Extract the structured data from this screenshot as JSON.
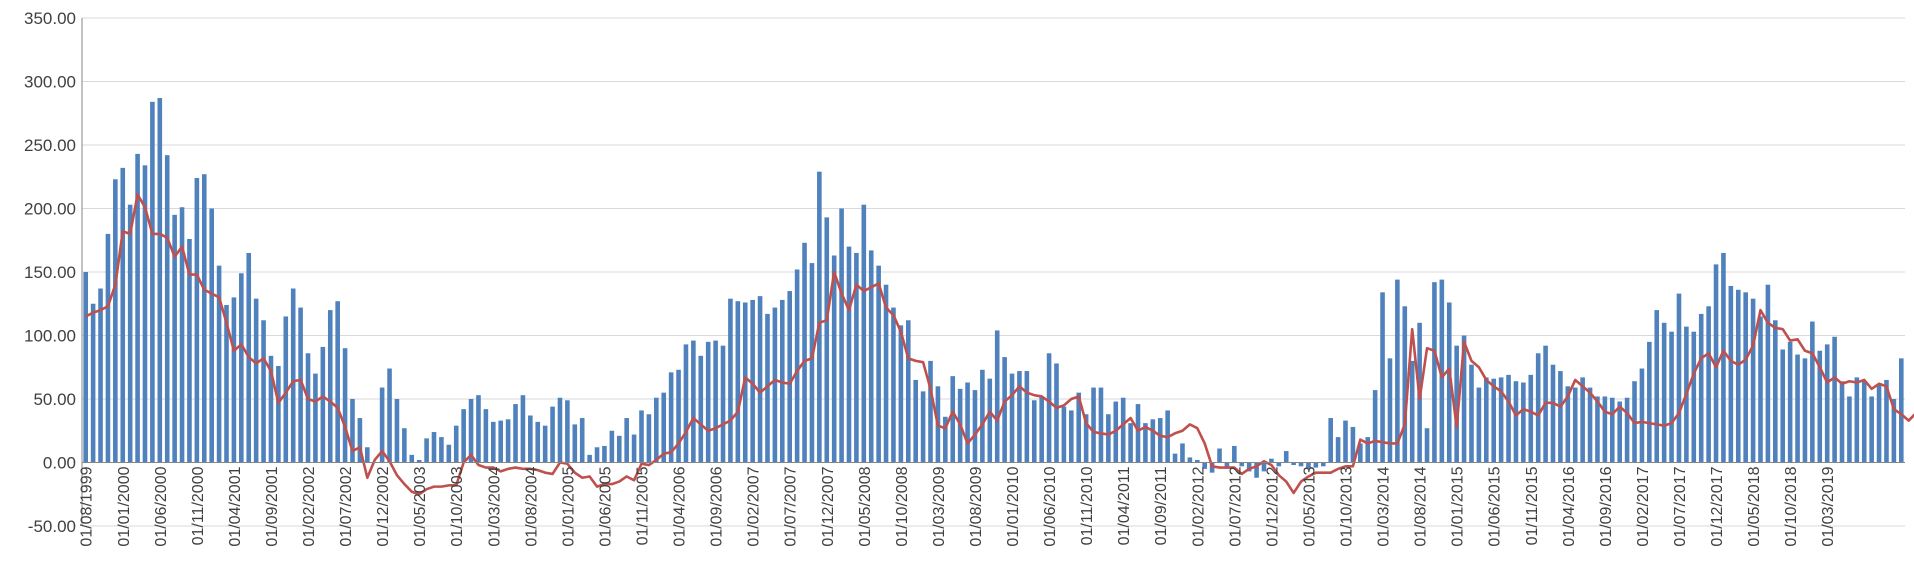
{
  "chart_data": {
    "type": "bar",
    "title": "",
    "xlabel": "",
    "ylabel": "",
    "ylim": [
      -50,
      350
    ],
    "yticks": [
      "-50.00",
      "0.00",
      "50.00",
      "100.00",
      "150.00",
      "200.00",
      "250.00",
      "300.00",
      "350.00"
    ],
    "ytick_values": [
      -50,
      0,
      50,
      100,
      150,
      200,
      250,
      300,
      350
    ],
    "grid": "horizontal",
    "legend": "none",
    "x_start": "1999-08",
    "xtick_labels": [
      "01/08/1999",
      "01/01/2000",
      "01/06/2000",
      "01/11/2000",
      "01/04/2001",
      "01/09/2001",
      "01/02/2002",
      "01/07/2002",
      "01/12/2002",
      "01/05/2003",
      "01/10/2003",
      "01/03/2004",
      "01/08/2004",
      "01/01/2005",
      "01/06/2005",
      "01/11/2005",
      "01/04/2006",
      "01/09/2006",
      "01/02/2007",
      "01/07/2007",
      "01/12/2007",
      "01/05/2008",
      "01/10/2008",
      "01/03/2009",
      "01/08/2009",
      "01/01/2010",
      "01/06/2010",
      "01/11/2010",
      "01/04/2011",
      "01/09/2011",
      "01/02/2012",
      "01/07/2012",
      "01/12/2012",
      "01/05/2013",
      "01/10/2013",
      "01/03/2014",
      "01/08/2014",
      "01/01/2015",
      "01/06/2015",
      "01/11/2015",
      "01/04/2016",
      "01/09/2016",
      "01/02/2017",
      "01/07/2017",
      "01/12/2017",
      "01/05/2018",
      "01/10/2018",
      "01/03/2019"
    ],
    "colors": {
      "bars": "#4F81BD",
      "line": "#C0504D",
      "grid": "#D9D9D9",
      "axis": "#868686"
    },
    "series": [
      {
        "kind": "bar",
        "values": [
          150,
          125,
          137,
          180,
          223,
          232,
          203,
          243,
          234,
          284,
          287,
          242,
          195,
          201,
          176,
          224,
          227,
          200,
          155,
          124,
          130,
          149,
          165,
          129,
          112,
          84,
          76,
          115,
          137,
          122,
          86,
          70,
          91,
          120,
          127,
          90,
          50,
          35,
          12,
          0,
          59,
          74,
          50,
          27,
          6,
          2,
          19,
          24,
          20,
          14,
          29,
          42,
          50,
          53,
          42,
          32,
          33,
          34,
          46,
          53,
          37,
          32,
          29,
          44,
          51,
          49,
          30,
          35,
          6,
          12,
          13,
          25,
          21,
          35,
          22,
          41,
          38,
          51,
          55,
          71,
          73,
          93,
          96,
          84,
          95,
          96,
          92,
          129,
          127,
          126,
          128,
          131,
          117,
          122,
          128,
          135,
          152,
          173,
          157,
          229,
          193,
          163,
          200,
          170,
          165,
          203,
          167,
          155,
          140,
          122,
          108,
          112,
          65,
          56,
          80,
          60,
          36,
          68,
          58,
          63,
          57,
          73,
          66,
          104,
          83,
          70,
          72,
          72,
          49,
          52,
          86,
          78,
          44,
          41,
          55,
          38,
          59,
          59,
          38,
          48,
          51,
          31,
          46,
          31,
          34,
          35,
          41,
          7,
          15,
          4,
          2,
          -5,
          -8,
          11,
          -5,
          13,
          -3,
          -7,
          -12,
          -7,
          3,
          -3,
          9,
          -2,
          -3,
          -5,
          -4,
          -3,
          35,
          20,
          33,
          28,
          15,
          20,
          57,
          134,
          82,
          144,
          123,
          80,
          110,
          27,
          142,
          144,
          126,
          92,
          100,
          77,
          59,
          67,
          66,
          67,
          69,
          64,
          63,
          69,
          86,
          92,
          77,
          72,
          60,
          59,
          67,
          59,
          52,
          52,
          51,
          48,
          51,
          64,
          74,
          95,
          120,
          110,
          103,
          133,
          107,
          103,
          117,
          123,
          156,
          165,
          139,
          136,
          134,
          129,
          115,
          140,
          112,
          89,
          95,
          85,
          82,
          111,
          88,
          93,
          99,
          64,
          52,
          67,
          64,
          52,
          62,
          65,
          50,
          82
        ]
      },
      {
        "kind": "line",
        "values": [
          115,
          118,
          120,
          123,
          140,
          182,
          180,
          211,
          201,
          180,
          180,
          177,
          162,
          170,
          148,
          148,
          136,
          133,
          130,
          110,
          88,
          93,
          83,
          78,
          82,
          72,
          47,
          55,
          64,
          65,
          50,
          48,
          52,
          48,
          43,
          28,
          9,
          12,
          -12,
          2,
          9,
          1,
          -10,
          -17,
          -23,
          -25,
          -21,
          -19,
          -19,
          -18,
          -18,
          0,
          6,
          -2,
          -4,
          -4,
          -7,
          -5,
          -4,
          -5,
          -5,
          -6,
          -8,
          -9,
          0,
          -1,
          -8,
          -12,
          -11,
          -19,
          -17,
          -17,
          -15,
          -11,
          -14,
          -1,
          -2,
          2,
          7,
          8,
          15,
          24,
          35,
          30,
          25,
          27,
          30,
          33,
          40,
          67,
          62,
          55,
          60,
          65,
          63,
          62,
          72,
          80,
          82,
          110,
          112,
          150,
          133,
          120,
          140,
          135,
          138,
          141,
          122,
          116,
          103,
          82,
          80,
          79,
          58,
          29,
          27,
          40,
          30,
          15,
          22,
          30,
          40,
          33,
          48,
          53,
          60,
          55,
          53,
          52,
          48,
          43,
          45,
          50,
          52,
          31,
          24,
          23,
          22,
          25,
          30,
          35,
          25,
          28,
          25,
          21,
          20,
          23,
          25,
          30,
          27,
          15,
          -3,
          -4,
          -4,
          -4,
          -9,
          -5,
          -3,
          1,
          -2,
          -10,
          -15,
          -24,
          -15,
          -11,
          -8,
          -8,
          -8,
          -5,
          -3,
          -3,
          18,
          15,
          17,
          16,
          15,
          15,
          30,
          105,
          50,
          90,
          88,
          67,
          74,
          28,
          95,
          80,
          75,
          65,
          60,
          56,
          48,
          37,
          42,
          40,
          37,
          47,
          47,
          44,
          52,
          65,
          60,
          55,
          48,
          40,
          38,
          44,
          39,
          31,
          32,
          31,
          30,
          29,
          31,
          39,
          54,
          70,
          82,
          86,
          75,
          88,
          80,
          77,
          81,
          92,
          120,
          110,
          106,
          105,
          96,
          97,
          88,
          86,
          75,
          63,
          67,
          62,
          64,
          63,
          65,
          58,
          62,
          60,
          42,
          38,
          33,
          39,
          37,
          36,
          41,
          36,
          50
        ]
      }
    ]
  }
}
